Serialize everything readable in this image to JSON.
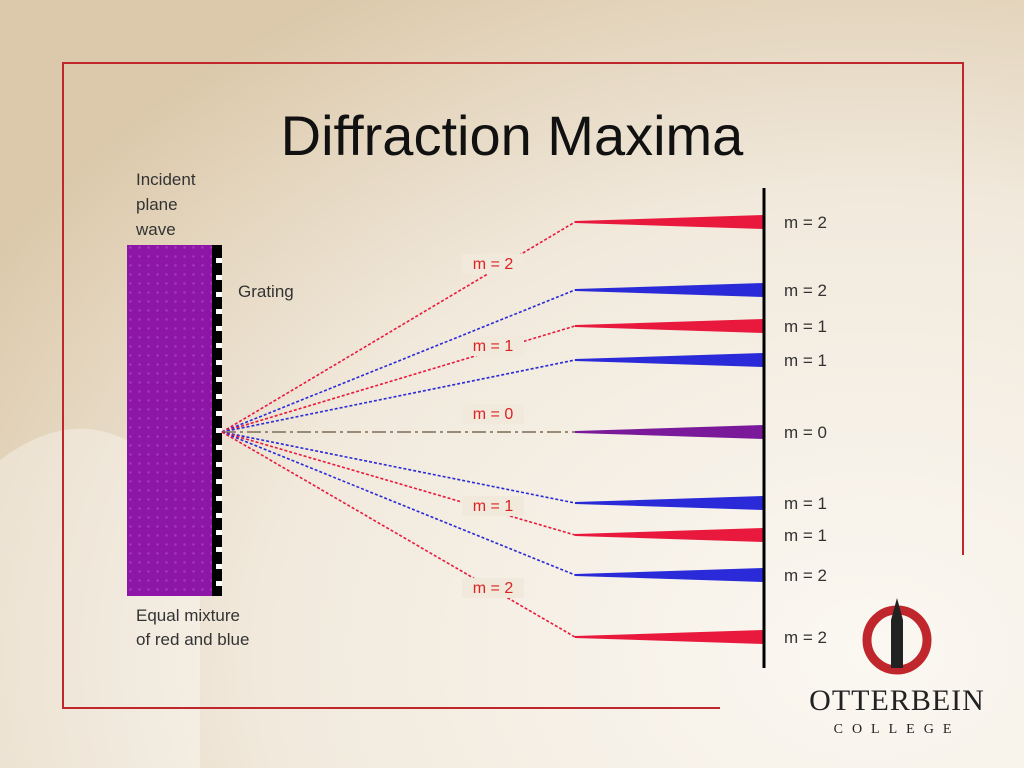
{
  "title": "Diffraction Maxima",
  "incident": [
    "Incident",
    "plane",
    "wave"
  ],
  "grating": "Grating",
  "mixture": [
    "Equal mixture",
    "of red and blue"
  ],
  "orders": [
    "m = 2",
    "m = 1",
    "m = 0",
    "m = 1",
    "m = 2"
  ],
  "screen": [
    "m = 2",
    "m = 2",
    "m = 1",
    "m = 1",
    "m = 0",
    "m = 1",
    "m = 1",
    "m = 2",
    "m = 2"
  ],
  "logo": {
    "name": "OTTERBEIN",
    "sub": "COLLEGE"
  }
}
